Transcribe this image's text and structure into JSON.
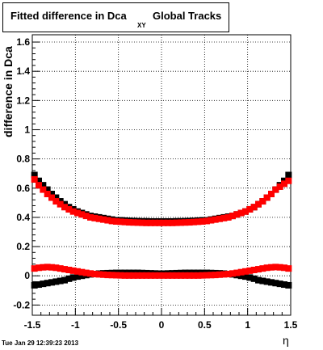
{
  "title": {
    "main": "Fitted difference in Dca",
    "subscript": "XY",
    "suffix": "Global Tracks"
  },
  "footer": {
    "timestamp": "Tue Jan 29 12:39:23 2013"
  },
  "chart_data": {
    "type": "scatter",
    "title": "Fitted difference in Dca XY Global Tracks",
    "xlabel": "η",
    "ylabel": "difference in Dca",
    "xlim": [
      -1.5,
      1.5
    ],
    "ylim": [
      -0.27,
      1.65
    ],
    "x_ticks": [
      "-1.5",
      "-1",
      "-0.5",
      "0",
      "0.5",
      "1",
      "1.5"
    ],
    "y_ticks": [
      "-0.2",
      "0",
      "0.2",
      "0.4",
      "0.6",
      "0.8",
      "1",
      "1.2",
      "1.4",
      "1.6"
    ],
    "grid": true,
    "x": [
      -1.475,
      -1.425,
      -1.375,
      -1.325,
      -1.275,
      -1.225,
      -1.175,
      -1.125,
      -1.075,
      -1.025,
      -0.975,
      -0.925,
      -0.875,
      -0.825,
      -0.775,
      -0.725,
      -0.675,
      -0.625,
      -0.575,
      -0.525,
      -0.475,
      -0.425,
      -0.375,
      -0.325,
      -0.275,
      -0.225,
      -0.175,
      -0.125,
      -0.075,
      -0.025,
      0.025,
      0.075,
      0.125,
      0.175,
      0.225,
      0.275,
      0.325,
      0.375,
      0.425,
      0.475,
      0.525,
      0.575,
      0.625,
      0.675,
      0.725,
      0.775,
      0.825,
      0.875,
      0.925,
      0.975,
      1.025,
      1.075,
      1.125,
      1.175,
      1.225,
      1.275,
      1.325,
      1.375,
      1.425,
      1.475
    ],
    "series": [
      {
        "color": "#000000",
        "values": [
          0.69,
          0.65,
          0.62,
          0.59,
          0.56,
          0.535,
          0.51,
          0.49,
          0.47,
          0.455,
          0.44,
          0.43,
          0.42,
          0.41,
          0.405,
          0.4,
          0.395,
          0.39,
          0.385,
          0.38,
          0.38,
          0.378,
          0.376,
          0.375,
          0.374,
          0.373,
          0.373,
          0.372,
          0.372,
          0.372,
          0.372,
          0.372,
          0.372,
          0.373,
          0.373,
          0.374,
          0.375,
          0.376,
          0.378,
          0.38,
          0.38,
          0.385,
          0.39,
          0.395,
          0.4,
          0.405,
          0.41,
          0.42,
          0.43,
          0.44,
          0.455,
          0.47,
          0.49,
          0.51,
          0.535,
          0.56,
          0.59,
          0.62,
          0.65,
          0.69
        ]
      },
      {
        "color": "#ff0000",
        "values": [
          0.66,
          0.62,
          0.59,
          0.56,
          0.535,
          0.51,
          0.49,
          0.47,
          0.455,
          0.44,
          0.43,
          0.42,
          0.41,
          0.4,
          0.395,
          0.39,
          0.385,
          0.38,
          0.375,
          0.372,
          0.37,
          0.368,
          0.366,
          0.365,
          0.364,
          0.363,
          0.362,
          0.362,
          0.362,
          0.362,
          0.362,
          0.362,
          0.362,
          0.363,
          0.364,
          0.365,
          0.366,
          0.368,
          0.37,
          0.372,
          0.375,
          0.38,
          0.385,
          0.39,
          0.395,
          0.4,
          0.41,
          0.42,
          0.43,
          0.44,
          0.455,
          0.47,
          0.49,
          0.51,
          0.535,
          0.56,
          0.59,
          0.61,
          0.63,
          0.65
        ]
      },
      {
        "color": "#000000",
        "values": [
          -0.065,
          -0.06,
          -0.055,
          -0.05,
          -0.045,
          -0.04,
          -0.035,
          -0.03,
          -0.02,
          -0.012,
          -0.005,
          0.0,
          0.005,
          0.01,
          0.012,
          0.015,
          0.017,
          0.018,
          0.019,
          0.02,
          0.02,
          0.02,
          0.02,
          0.02,
          0.02,
          0.019,
          0.018,
          0.017,
          0.016,
          0.015,
          0.015,
          0.016,
          0.017,
          0.018,
          0.019,
          0.02,
          0.02,
          0.02,
          0.02,
          0.02,
          0.02,
          0.019,
          0.018,
          0.017,
          0.015,
          0.012,
          0.01,
          0.005,
          0.0,
          -0.005,
          -0.012,
          -0.02,
          -0.03,
          -0.035,
          -0.04,
          -0.045,
          -0.05,
          -0.055,
          -0.06,
          -0.065
        ]
      },
      {
        "color": "#ff0000",
        "values": [
          0.05,
          0.055,
          0.058,
          0.06,
          0.058,
          0.055,
          0.05,
          0.045,
          0.04,
          0.035,
          0.03,
          0.025,
          0.02,
          0.016,
          0.012,
          0.01,
          0.008,
          0.006,
          0.005,
          0.004,
          0.003,
          0.002,
          0.002,
          0.002,
          0.002,
          0.002,
          0.002,
          0.002,
          0.002,
          0.002,
          0.002,
          0.002,
          0.002,
          0.002,
          0.002,
          0.002,
          0.002,
          0.002,
          0.002,
          0.003,
          0.004,
          0.005,
          0.006,
          0.008,
          0.01,
          0.012,
          0.016,
          0.02,
          0.025,
          0.03,
          0.035,
          0.04,
          0.045,
          0.05,
          0.055,
          0.058,
          0.06,
          0.058,
          0.055,
          0.05
        ]
      }
    ]
  }
}
